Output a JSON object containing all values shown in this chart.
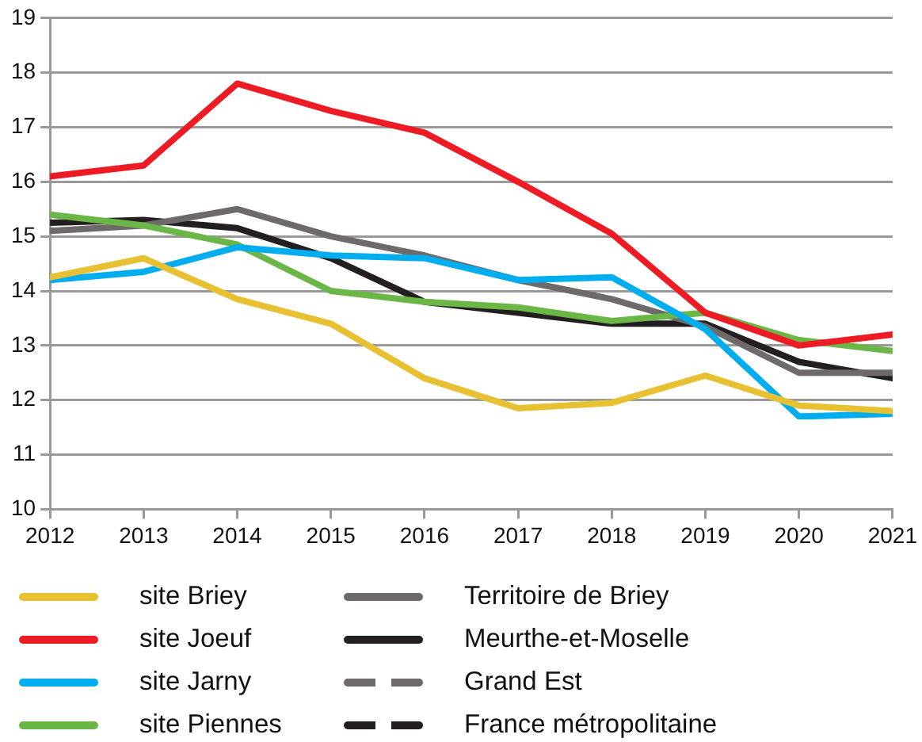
{
  "chart_data": {
    "type": "line",
    "x": [
      2012,
      2013,
      2014,
      2015,
      2016,
      2017,
      2018,
      2019,
      2020,
      2021
    ],
    "xlim": [
      2012,
      2021
    ],
    "xticks": [
      2012,
      2013,
      2014,
      2015,
      2016,
      2017,
      2018,
      2019,
      2020,
      2021
    ],
    "ylim": [
      10,
      19
    ],
    "yticks": [
      10,
      11,
      12,
      13,
      14,
      15,
      16,
      17,
      18,
      19
    ],
    "grid": "y",
    "legend": "bottom",
    "marker": "none",
    "series": [
      {
        "name": "site Briey",
        "color": "#e8c132",
        "values": [
          14.25,
          14.6,
          13.85,
          13.4,
          12.4,
          11.85,
          11.95,
          12.45,
          11.9,
          11.8
        ]
      },
      {
        "name": "site Joeuf",
        "color": "#ed1c24",
        "values": [
          16.1,
          16.3,
          17.8,
          17.3,
          16.9,
          16.0,
          15.05,
          13.6,
          13.0,
          13.2
        ]
      },
      {
        "name": "site Jarny",
        "color": "#00aeef",
        "values": [
          14.2,
          14.35,
          14.8,
          14.65,
          14.6,
          14.2,
          14.25,
          13.3,
          11.7,
          11.75
        ]
      },
      {
        "name": "site Piennes",
        "color": "#6ab647",
        "values": [
          15.4,
          15.2,
          14.85,
          14.0,
          13.8,
          13.7,
          13.45,
          13.6,
          13.1,
          12.9
        ]
      },
      {
        "name": "Territoire de Briey",
        "color": "#6d6a69",
        "values": [
          15.1,
          15.2,
          15.5,
          15.0,
          14.65,
          14.2,
          13.85,
          13.35,
          12.5,
          12.5
        ]
      },
      {
        "name": "Meurthe-et-Moselle",
        "color": "#231f20",
        "values": [
          15.25,
          15.3,
          15.15,
          14.6,
          13.8,
          13.6,
          13.4,
          13.4,
          12.7,
          12.4
        ]
      },
      {
        "name": "Grand Est",
        "color": "#6d6a69",
        "line_style": "dashed",
        "values": [
          null,
          null,
          null,
          null,
          null,
          null,
          null,
          null,
          null,
          null
        ]
      },
      {
        "name": "France métropolitaine",
        "color": "#231f20",
        "line_style": "dashed",
        "values": [
          null,
          null,
          null,
          null,
          null,
          null,
          null,
          null,
          null,
          null
        ]
      }
    ]
  }
}
